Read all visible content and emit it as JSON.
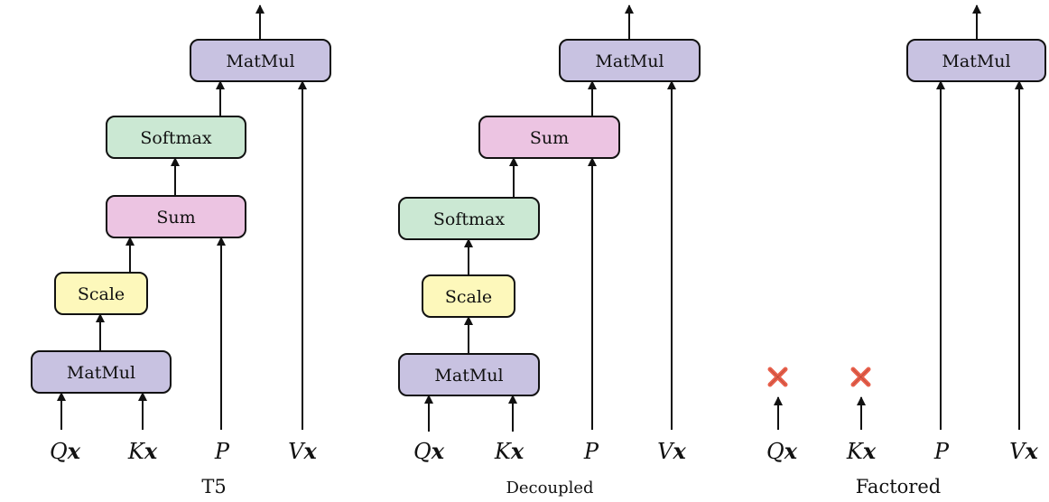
{
  "colors": {
    "matmul": "#c8c2e1",
    "softmax": "#cbe8d3",
    "sum": "#ecc4e2",
    "scale": "#fdf8bb",
    "cross": "#e8604c"
  },
  "panels": [
    {
      "id": "t5",
      "title": "T5",
      "boxes": [
        {
          "id": "t5-matmul-top",
          "label": "MatMul",
          "kind": "matmul"
        },
        {
          "id": "t5-softmax",
          "label": "Softmax",
          "kind": "softmax"
        },
        {
          "id": "t5-sum",
          "label": "Sum",
          "kind": "sum"
        },
        {
          "id": "t5-scale",
          "label": "Scale",
          "kind": "scale"
        },
        {
          "id": "t5-matmul-bottom",
          "label": "MatMul",
          "kind": "matmul"
        }
      ],
      "inputs": [
        {
          "id": "t5-qx",
          "base": "Q",
          "sub": "x"
        },
        {
          "id": "t5-kx",
          "base": "K",
          "sub": "x"
        },
        {
          "id": "t5-p",
          "base": "P",
          "sub": ""
        },
        {
          "id": "t5-vx",
          "base": "V",
          "sub": "x"
        }
      ]
    },
    {
      "id": "decoupled",
      "title": "Decoupled",
      "boxes": [
        {
          "id": "dec-matmul-top",
          "label": "MatMul",
          "kind": "matmul"
        },
        {
          "id": "dec-sum",
          "label": "Sum",
          "kind": "sum"
        },
        {
          "id": "dec-softmax",
          "label": "Softmax",
          "kind": "softmax"
        },
        {
          "id": "dec-scale",
          "label": "Scale",
          "kind": "scale"
        },
        {
          "id": "dec-matmul-bottom",
          "label": "MatMul",
          "kind": "matmul"
        }
      ],
      "inputs": [
        {
          "id": "dec-qx",
          "base": "Q",
          "sub": "x"
        },
        {
          "id": "dec-kx",
          "base": "K",
          "sub": "x"
        },
        {
          "id": "dec-p",
          "base": "P",
          "sub": ""
        },
        {
          "id": "dec-vx",
          "base": "V",
          "sub": "x"
        }
      ]
    },
    {
      "id": "factored",
      "title": "Factored",
      "boxes": [
        {
          "id": "fac-matmul-top",
          "label": "MatMul",
          "kind": "matmul"
        }
      ],
      "inputs": [
        {
          "id": "fac-qx",
          "base": "Q",
          "sub": "x"
        },
        {
          "id": "fac-kx",
          "base": "K",
          "sub": "x"
        },
        {
          "id": "fac-p",
          "base": "P",
          "sub": ""
        },
        {
          "id": "fac-vx",
          "base": "V",
          "sub": "x"
        }
      ]
    }
  ]
}
